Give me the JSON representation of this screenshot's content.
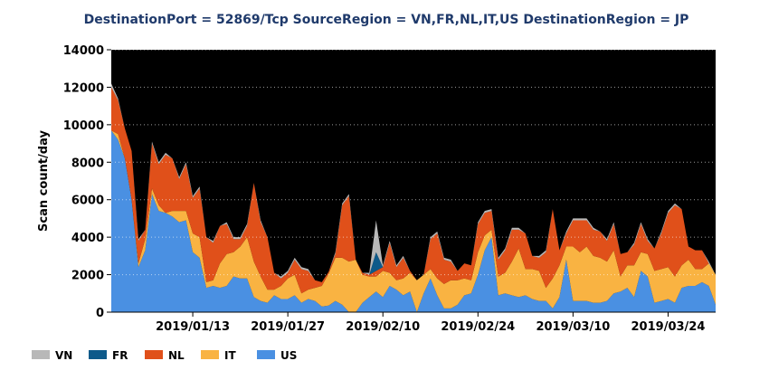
{
  "chart_data": {
    "type": "area",
    "stacked": true,
    "title": "DestinationPort = 52869/Tcp SourceRegion = VN,FR,NL,IT,US DestinationRegion = JP",
    "xlabel": "",
    "ylabel": "Scan count/day",
    "x_start": "2019/01/01",
    "x_end": "2019/04/01",
    "xticks": [
      {
        "day": 12,
        "label": "2019/01/13"
      },
      {
        "day": 26,
        "label": "2019/01/27"
      },
      {
        "day": 40,
        "label": "2019/02/10"
      },
      {
        "day": 54,
        "label": "2019/02/24"
      },
      {
        "day": 68,
        "label": "2019/03/10"
      },
      {
        "day": 82,
        "label": "2019/03/24"
      }
    ],
    "ylim": [
      0,
      14000
    ],
    "yticks": [
      0,
      2000,
      4000,
      6000,
      8000,
      10000,
      12000,
      14000
    ],
    "background": "#000000",
    "legend_position": "bottom-left",
    "series": [
      {
        "name": "US",
        "color": "#4a90e2",
        "values": [
          9700,
          9200,
          8200,
          6000,
          2400,
          3300,
          6300,
          5400,
          5300,
          5100,
          4800,
          4900,
          3200,
          2900,
          1300,
          1400,
          1300,
          1400,
          1900,
          1800,
          1800,
          800,
          600,
          500,
          900,
          700,
          700,
          900,
          500,
          700,
          600,
          300,
          350,
          600,
          400,
          0,
          0,
          500,
          800,
          1100,
          800,
          1400,
          1200,
          900,
          1100,
          0,
          1000,
          1800,
          900,
          200,
          200,
          400,
          900,
          1000,
          2000,
          3300,
          4000,
          900,
          1000,
          900,
          800,
          900,
          700,
          600,
          600,
          200,
          800,
          2800,
          600,
          600,
          600,
          500,
          500,
          600,
          1000,
          1100,
          1300,
          800,
          2200,
          1900,
          500,
          600,
          700,
          500,
          1300,
          1400,
          1400,
          1600,
          1400,
          400
        ]
      },
      {
        "name": "IT",
        "color": "#f9b342",
        "values": [
          0,
          300,
          0,
          0,
          200,
          600,
          300,
          300,
          0,
          300,
          600,
          500,
          1000,
          1100,
          300,
          300,
          1300,
          1700,
          1300,
          1700,
          2200,
          1900,
          1300,
          700,
          300,
          700,
          1100,
          1100,
          500,
          500,
          700,
          1100,
          1700,
          2300,
          2500,
          2700,
          2800,
          1500,
          1100,
          800,
          1400,
          700,
          500,
          900,
          1000,
          1700,
          1000,
          500,
          900,
          1300,
          1500,
          1300,
          900,
          700,
          1200,
          800,
          400,
          1000,
          1100,
          1800,
          2600,
          1400,
          1600,
          1600,
          700,
          1600,
          1700,
          700,
          2900,
          2600,
          2900,
          2500,
          2400,
          2100,
          2300,
          800,
          1200,
          1700,
          1000,
          1200,
          1700,
          1700,
          1700,
          1400,
          1200,
          1400,
          900,
          700,
          1200,
          1600
        ]
      },
      {
        "name": "NL",
        "color": "#e0501a",
        "values": [
          2300,
          1800,
          1600,
          2600,
          1200,
          500,
          2400,
          2200,
          3100,
          2800,
          1700,
          2500,
          1900,
          2600,
          2400,
          2000,
          2000,
          1600,
          700,
          400,
          600,
          4200,
          2900,
          2800,
          900,
          400,
          300,
          800,
          1300,
          1000,
          400,
          200,
          100,
          200,
          2800,
          3500,
          0,
          100,
          100,
          300,
          200,
          1600,
          700,
          1100,
          100,
          0,
          0,
          1600,
          2400,
          1300,
          1000,
          500,
          800,
          800,
          1500,
          1200,
          1000,
          900,
          1200,
          1700,
          1000,
          1900,
          700,
          700,
          1900,
          3700,
          800,
          700,
          1400,
          1700,
          1400,
          1400,
          1400,
          1100,
          1400,
          1200,
          700,
          1100,
          1500,
          700,
          1200,
          1900,
          2900,
          3800,
          3000,
          700,
          1000,
          1000,
          0,
          0
        ]
      },
      {
        "name": "FR",
        "color": "#0e5a8a",
        "values": [
          0,
          0,
          0,
          0,
          0,
          0,
          0,
          0,
          0,
          0,
          0,
          0,
          0,
          0,
          0,
          0,
          0,
          0,
          0,
          0,
          0,
          0,
          0,
          0,
          0,
          0,
          0,
          0,
          0,
          0,
          0,
          0,
          0,
          0,
          0,
          0,
          0,
          0,
          0,
          1000,
          0,
          0,
          0,
          0,
          0,
          0,
          0,
          0,
          0,
          0,
          0,
          0,
          0,
          0,
          0,
          0,
          0,
          0,
          0,
          0,
          0,
          0,
          0,
          0,
          0,
          0,
          0,
          0,
          0,
          0,
          0,
          0,
          0,
          0,
          0,
          0,
          0,
          0,
          0,
          0,
          0,
          0,
          0,
          0,
          0,
          0,
          0,
          0,
          0,
          0
        ]
      },
      {
        "name": "VN",
        "color": "#b8b8b8",
        "values": [
          200,
          100,
          0,
          0,
          100,
          0,
          100,
          100,
          100,
          0,
          100,
          100,
          100,
          100,
          0,
          100,
          0,
          100,
          100,
          100,
          100,
          0,
          100,
          0,
          0,
          100,
          100,
          100,
          100,
          100,
          0,
          0,
          0,
          100,
          100,
          100,
          0,
          0,
          100,
          1700,
          100,
          100,
          100,
          100,
          0,
          0,
          0,
          100,
          100,
          100,
          100,
          0,
          0,
          0,
          100,
          100,
          100,
          100,
          100,
          100,
          100,
          0,
          0,
          100,
          100,
          0,
          0,
          100,
          100,
          100,
          100,
          100,
          0,
          100,
          100,
          0,
          0,
          100,
          100,
          100,
          0,
          100,
          100,
          100,
          0,
          0,
          0,
          0,
          100,
          0
        ]
      }
    ]
  }
}
